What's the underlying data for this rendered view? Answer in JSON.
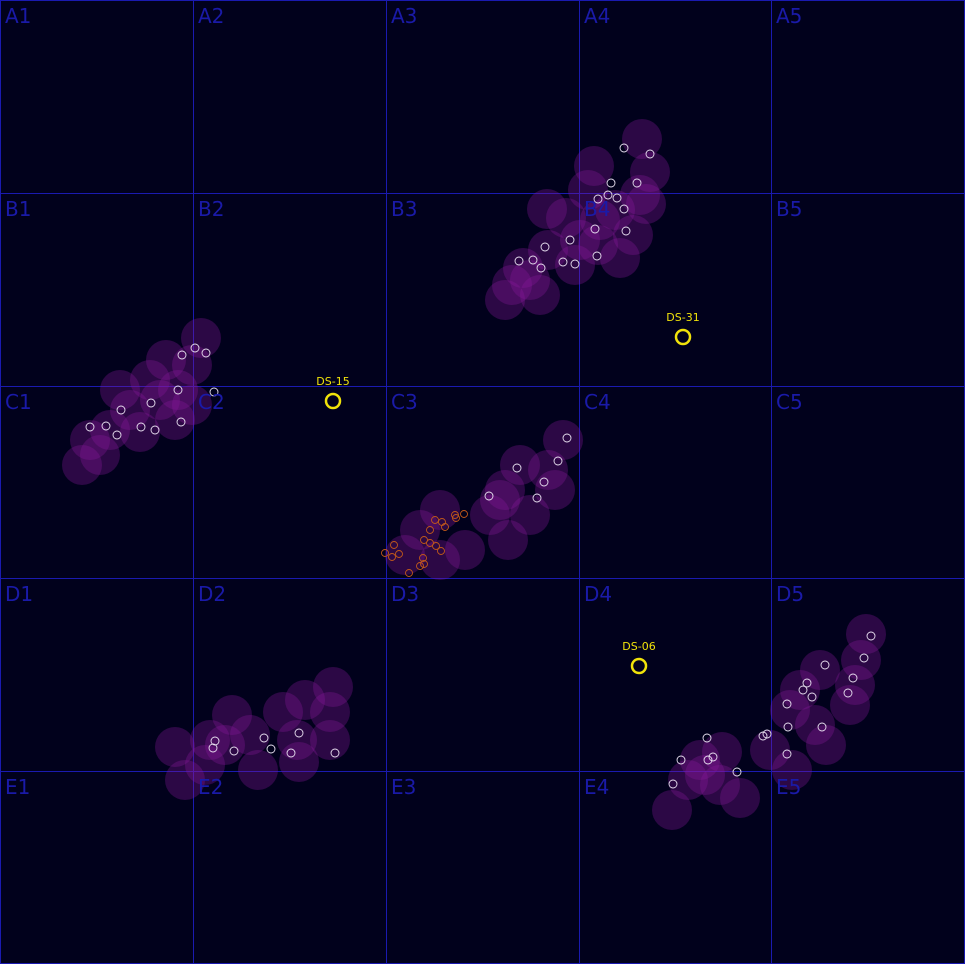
{
  "grid": {
    "rows": [
      "A",
      "B",
      "C",
      "D",
      "E"
    ],
    "cols": [
      "1",
      "2",
      "3",
      "4",
      "5"
    ],
    "labels": [
      "A1",
      "A2",
      "A3",
      "A4",
      "A5",
      "B1",
      "B2",
      "B3",
      "B4",
      "B5",
      "C1",
      "C2",
      "C3",
      "C4",
      "C5",
      "D1",
      "D2",
      "D3",
      "D4",
      "D5",
      "E1",
      "E2",
      "E3",
      "E4",
      "E5"
    ]
  },
  "colors": {
    "background": "#01011c",
    "grid_line": "#1a1ab0",
    "grid_label": "#1a1aa8",
    "halo": "#8a1a9a",
    "marker": "#e8e0f0",
    "marker_orange": "#c0581a",
    "station": "#f0e20a"
  },
  "stations": [
    {
      "id": "DS-15",
      "label": "DS-15"
    },
    {
      "id": "DS-31",
      "label": "DS-31"
    },
    {
      "id": "DS-06",
      "label": "DS-06"
    }
  ]
}
